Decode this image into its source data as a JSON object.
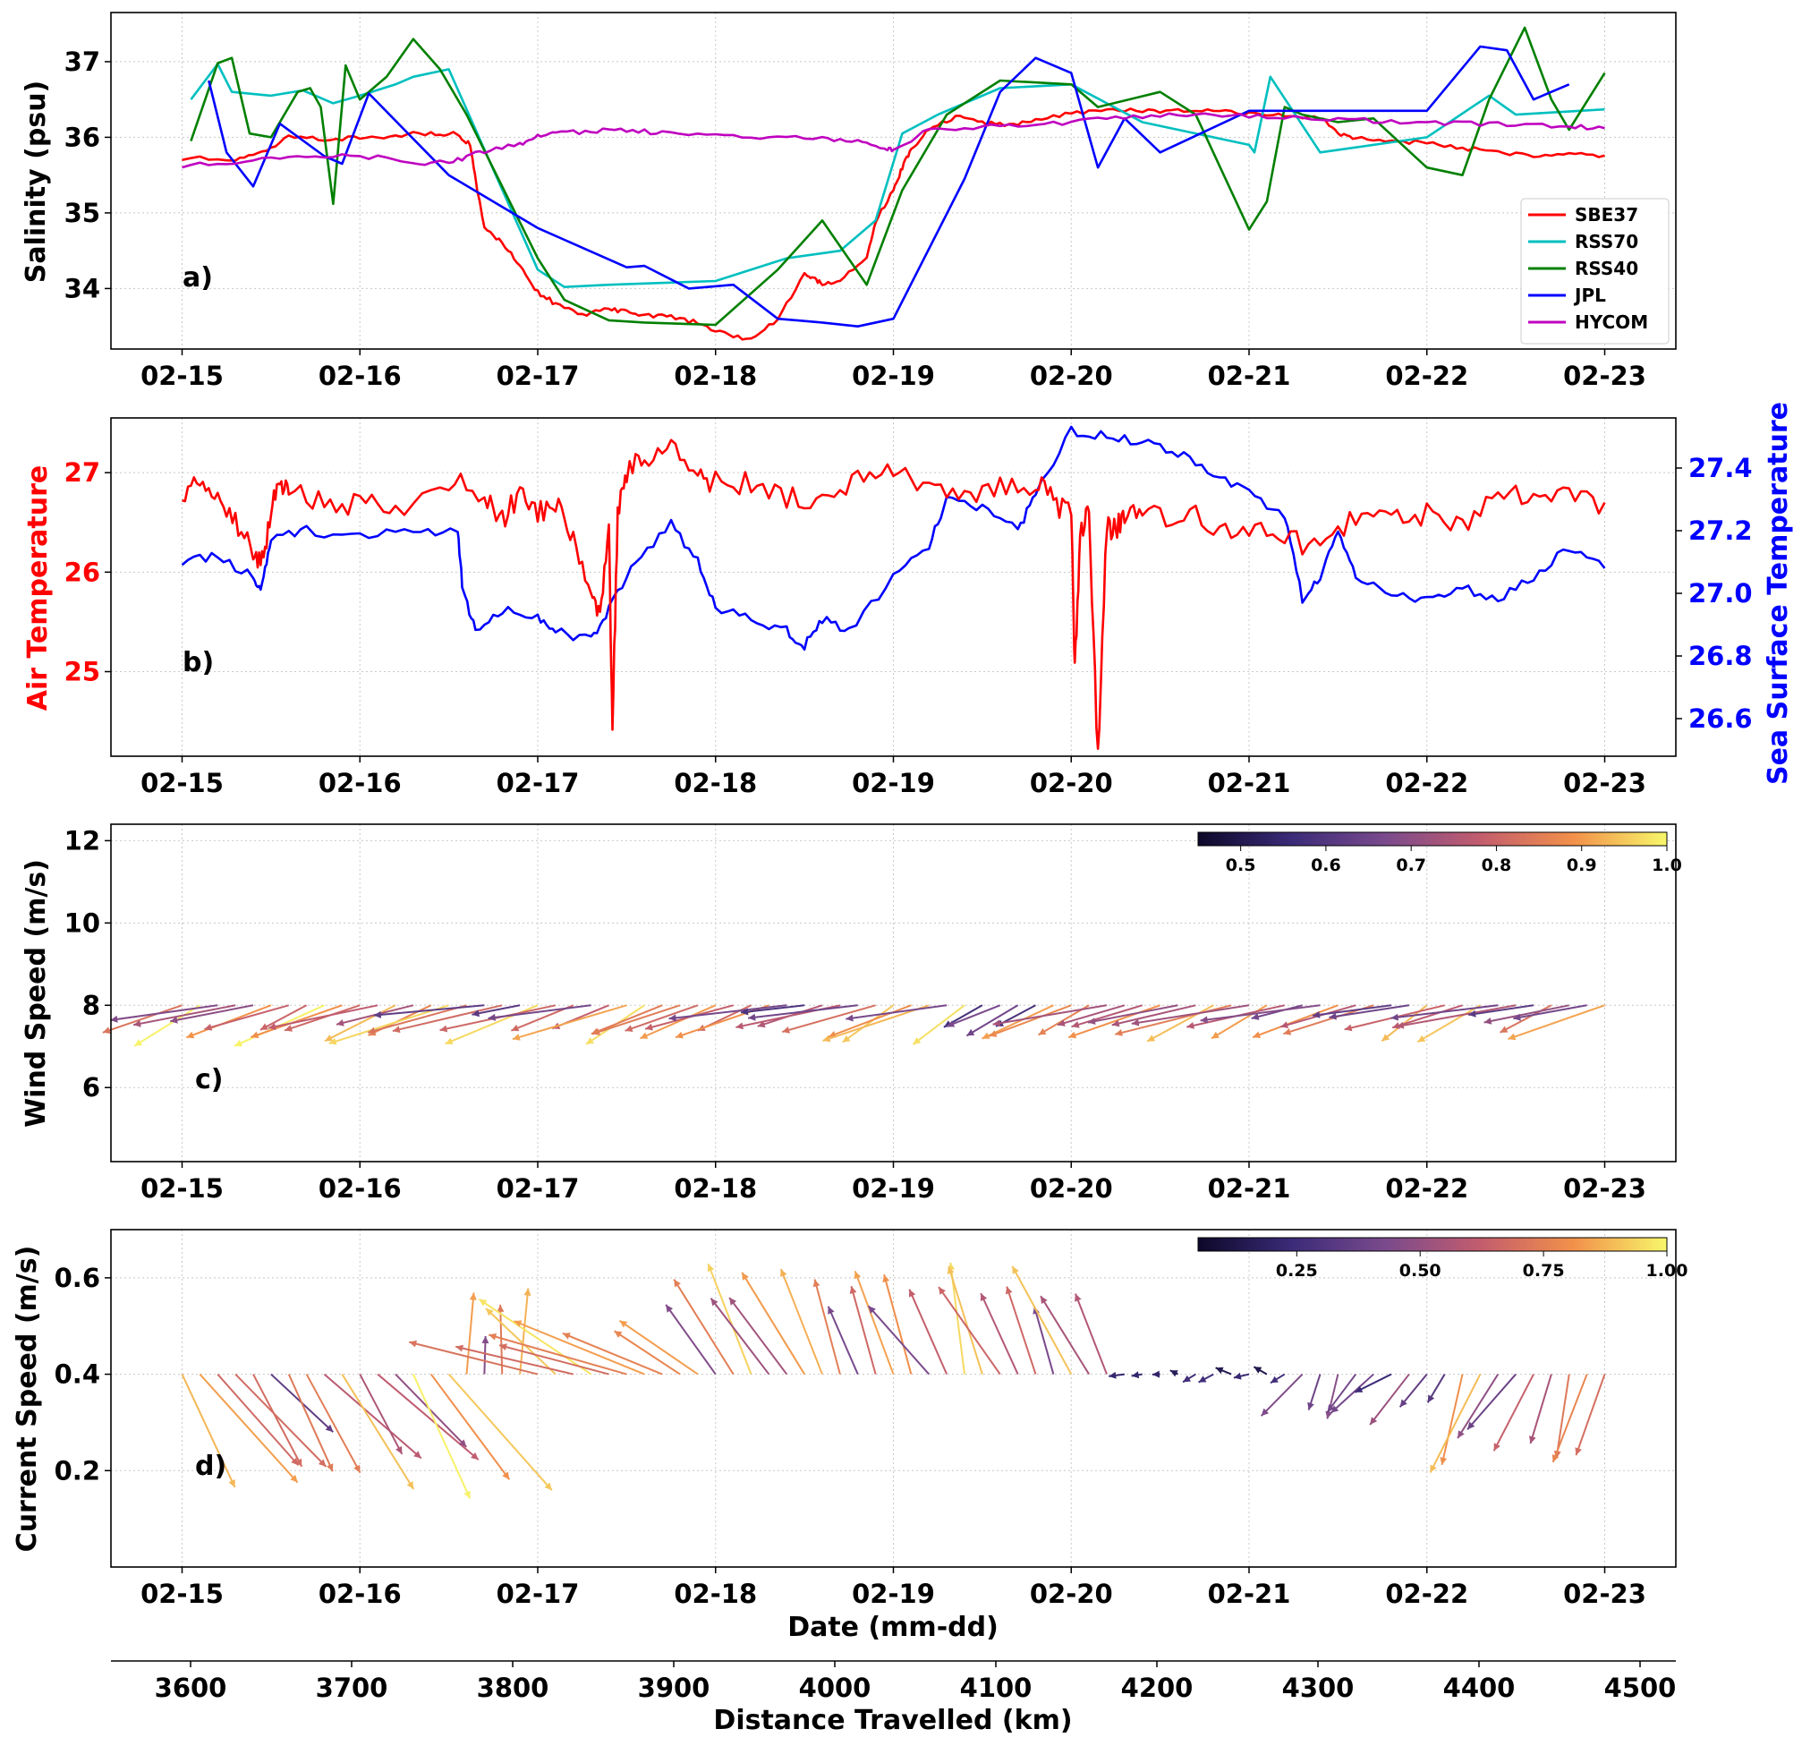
{
  "chart_data": [
    {
      "type": "line",
      "panel_label": "a)",
      "ylabel": "Salinity (psu)",
      "x_ticks": [
        "02-15",
        "02-16",
        "02-17",
        "02-18",
        "02-19",
        "02-20",
        "02-21",
        "02-22",
        "02-23"
      ],
      "xlim": [
        -0.4,
        8.4
      ],
      "ylim": [
        33.2,
        37.65
      ],
      "y_ticks": [
        34,
        35,
        36,
        37
      ],
      "grid": true,
      "legend_position": "lower-right",
      "series": [
        {
          "name": "SBE37",
          "color": "#ff0000",
          "x": [
            0,
            0.3,
            0.45,
            0.6,
            0.8,
            1,
            1.2,
            1.4,
            1.55,
            1.62,
            1.66,
            1.7,
            1.8,
            1.9,
            2,
            2.1,
            2.25,
            2.4,
            2.5,
            2.6,
            2.75,
            2.9,
            3.05,
            3.2,
            3.35,
            3.5,
            3.55,
            3.6,
            3.7,
            3.85,
            3.9,
            4.0,
            4.05,
            4.1,
            4.2,
            4.35,
            4.5,
            4.65,
            4.8,
            5.0,
            5.2,
            5.4,
            5.6,
            5.8,
            6.0,
            6.2,
            6.4,
            6.5,
            6.6,
            6.8,
            7.0,
            7.2,
            7.4,
            7.6,
            7.8,
            8.0
          ],
          "y": [
            35.72,
            35.72,
            35.8,
            36.0,
            35.98,
            35.99,
            36.02,
            36.06,
            36.04,
            35.9,
            35.3,
            34.8,
            34.6,
            34.3,
            33.95,
            33.8,
            33.65,
            33.72,
            33.7,
            33.65,
            33.62,
            33.55,
            33.4,
            33.33,
            33.6,
            34.2,
            34.15,
            34.05,
            34.1,
            34.4,
            34.9,
            35.3,
            35.6,
            35.85,
            36.1,
            36.28,
            36.2,
            36.15,
            36.25,
            36.32,
            36.35,
            36.35,
            36.35,
            36.34,
            36.32,
            36.28,
            36.25,
            36.05,
            35.98,
            35.96,
            35.92,
            35.86,
            35.8,
            35.76,
            35.78,
            35.76
          ]
        },
        {
          "name": "RSS70",
          "color": "#00bfbf",
          "x": [
            0.05,
            0.2,
            0.28,
            0.5,
            0.68,
            0.85,
            1.0,
            1.2,
            1.3,
            1.5,
            2.0,
            2.15,
            2.4,
            3.0,
            3.4,
            3.7,
            3.9,
            4.05,
            4.25,
            4.6,
            5.0,
            5.4,
            6.0,
            6.03,
            6.12,
            6.4,
            7.0,
            7.35,
            7.5,
            8.0
          ],
          "y": [
            36.5,
            36.97,
            36.6,
            36.55,
            36.62,
            36.45,
            36.55,
            36.7,
            36.8,
            36.9,
            34.25,
            34.02,
            34.05,
            34.1,
            34.4,
            34.5,
            34.9,
            36.05,
            36.3,
            36.65,
            36.7,
            36.2,
            35.9,
            35.8,
            36.8,
            35.8,
            36.0,
            36.55,
            36.3,
            36.37
          ]
        },
        {
          "name": "RSS40",
          "color": "#008000",
          "x": [
            0.05,
            0.2,
            0.28,
            0.38,
            0.5,
            0.65,
            0.72,
            0.78,
            0.85,
            0.92,
            1.0,
            1.15,
            1.3,
            1.45,
            1.6,
            2.0,
            2.15,
            2.4,
            2.6,
            3.0,
            3.35,
            3.6,
            3.85,
            4.05,
            4.3,
            4.6,
            5.0,
            5.15,
            5.5,
            5.7,
            6.0,
            6.1,
            6.2,
            6.3,
            6.5,
            6.7,
            7.0,
            7.2,
            7.35,
            7.55,
            7.7,
            7.8,
            8.0
          ],
          "y": [
            35.95,
            36.98,
            37.05,
            36.05,
            36.0,
            36.6,
            36.65,
            36.4,
            35.12,
            36.95,
            36.5,
            36.8,
            37.3,
            36.9,
            36.3,
            34.4,
            33.85,
            33.58,
            33.55,
            33.52,
            34.25,
            34.9,
            34.05,
            35.3,
            36.3,
            36.75,
            36.7,
            36.4,
            36.6,
            36.3,
            34.78,
            35.15,
            36.4,
            36.3,
            36.2,
            36.25,
            35.6,
            35.5,
            36.5,
            37.45,
            36.5,
            36.1,
            36.85
          ]
        },
        {
          "name": "JPL",
          "color": "#0000ff",
          "x": [
            0.15,
            0.25,
            0.4,
            0.55,
            0.8,
            0.9,
            1.05,
            1.5,
            2.0,
            2.5,
            2.6,
            2.85,
            3.1,
            3.35,
            3.6,
            3.8,
            4.0,
            4.4,
            4.6,
            4.8,
            5.0,
            5.15,
            5.3,
            5.5,
            6.0,
            7.0,
            7.3,
            7.45,
            7.6,
            7.7,
            7.8
          ],
          "y": [
            36.75,
            35.8,
            35.35,
            36.18,
            35.75,
            35.65,
            36.58,
            35.5,
            34.8,
            34.28,
            34.3,
            34.0,
            34.05,
            33.6,
            33.55,
            33.5,
            33.6,
            35.45,
            36.6,
            37.05,
            36.85,
            35.6,
            36.25,
            35.8,
            36.35,
            36.35,
            37.2,
            37.15,
            36.5,
            36.6,
            36.7
          ]
        },
        {
          "name": "HYCOM",
          "color": "#bf00bf",
          "x": [
            0,
            0.3,
            0.6,
            0.9,
            1.2,
            1.4,
            1.55,
            1.7,
            1.9,
            2.0,
            2.1,
            2.3,
            2.5,
            2.7,
            3.0,
            3.3,
            3.6,
            3.8,
            3.95,
            4.0,
            4.2,
            4.5,
            4.8,
            5.1,
            5.4,
            5.7,
            6.0,
            6.3,
            6.6,
            6.9,
            7.2,
            7.5,
            7.8,
            8.0
          ],
          "y": [
            35.62,
            35.68,
            35.74,
            35.76,
            35.72,
            35.65,
            35.7,
            35.82,
            35.9,
            36.02,
            36.05,
            36.08,
            36.1,
            36.05,
            36.02,
            36.0,
            35.98,
            35.95,
            35.85,
            35.83,
            36.1,
            36.14,
            36.16,
            36.22,
            36.28,
            36.3,
            36.28,
            36.25,
            36.23,
            36.2,
            36.18,
            36.17,
            36.14,
            36.12
          ]
        }
      ]
    },
    {
      "type": "line",
      "panel_label": "b)",
      "ylabel": "Air Temperature",
      "ylabel_right": "Sea Surface Temperature",
      "x_ticks": [
        "02-15",
        "02-16",
        "02-17",
        "02-18",
        "02-19",
        "02-20",
        "02-21",
        "02-22",
        "02-23"
      ],
      "xlim": [
        -0.4,
        8.4
      ],
      "ylim_left": [
        24.15,
        27.55
      ],
      "y_ticks_left": [
        25,
        26,
        27
      ],
      "ylim_right": [
        26.48,
        27.56
      ],
      "y_ticks_right": [
        "26.6",
        "26.8",
        "27.0",
        "27.2",
        "27.4"
      ],
      "grid": true,
      "series": [
        {
          "name": "Air Temperature",
          "axis": "left",
          "color": "#ff0000",
          "x": [
            0,
            0.1,
            0.2,
            0.3,
            0.4,
            0.45,
            0.5,
            0.55,
            0.6,
            0.8,
            1.0,
            1.2,
            1.5,
            1.7,
            1.8,
            1.9,
            2.0,
            2.1,
            2.2,
            2.3,
            2.35,
            2.4,
            2.42,
            2.45,
            2.5,
            2.6,
            2.75,
            2.9,
            3.0,
            3.2,
            3.4,
            3.6,
            3.8,
            4.0,
            4.2,
            4.4,
            4.6,
            4.8,
            4.9,
            5.0,
            5.02,
            5.05,
            5.1,
            5.15,
            5.2,
            5.25,
            5.3,
            5.4,
            5.6,
            5.8,
            6.0,
            6.2,
            6.4,
            6.6,
            6.8,
            7.0,
            7.2,
            7.4,
            7.6,
            7.8,
            8.0
          ],
          "y": [
            26.8,
            26.9,
            26.7,
            26.5,
            26.2,
            26.1,
            26.6,
            26.9,
            26.8,
            26.7,
            26.7,
            26.6,
            26.9,
            26.8,
            26.5,
            26.8,
            26.6,
            26.7,
            26.3,
            25.8,
            25.5,
            26.4,
            24.5,
            26.6,
            27.0,
            27.15,
            27.25,
            27.0,
            26.9,
            26.9,
            26.75,
            26.7,
            26.9,
            27.0,
            26.9,
            26.8,
            26.85,
            26.9,
            26.7,
            26.6,
            25.0,
            26.4,
            26.6,
            24.1,
            26.5,
            26.4,
            26.6,
            26.55,
            26.6,
            26.5,
            26.4,
            26.4,
            26.2,
            26.6,
            26.5,
            26.6,
            26.5,
            26.7,
            26.85,
            26.75,
            26.7
          ]
        },
        {
          "name": "Sea Surface Temperature",
          "axis": "right",
          "color": "#0000ff",
          "x": [
            0,
            0.2,
            0.4,
            0.45,
            0.5,
            0.7,
            1.0,
            1.3,
            1.55,
            1.58,
            1.65,
            1.8,
            2.0,
            2.1,
            2.3,
            2.4,
            2.55,
            2.75,
            2.9,
            3.0,
            3.2,
            3.4,
            3.5,
            3.6,
            3.75,
            4.0,
            4.2,
            4.3,
            4.5,
            4.7,
            4.8,
            5.0,
            5.2,
            5.4,
            5.6,
            5.8,
            6.0,
            6.2,
            6.3,
            6.4,
            6.5,
            6.6,
            6.8,
            7.0,
            7.2,
            7.4,
            7.6,
            7.8,
            8.0
          ],
          "y": [
            27.1,
            27.12,
            27.05,
            27.02,
            27.18,
            27.2,
            27.18,
            27.2,
            27.2,
            27.0,
            26.88,
            26.95,
            26.92,
            26.88,
            26.85,
            26.95,
            27.1,
            27.22,
            27.1,
            26.95,
            26.92,
            26.88,
            26.83,
            26.92,
            26.88,
            27.05,
            27.15,
            27.3,
            27.27,
            27.2,
            27.32,
            27.52,
            27.5,
            27.48,
            27.45,
            27.38,
            27.32,
            27.25,
            26.98,
            27.05,
            27.2,
            27.05,
            27.0,
            26.98,
            27.02,
            26.98,
            27.05,
            27.15,
            27.08
          ]
        }
      ]
    },
    {
      "type": "quiver",
      "panel_label": "c)",
      "ylabel": "Wind Speed (m/s)",
      "x_ticks": [
        "02-15",
        "02-16",
        "02-17",
        "02-18",
        "02-19",
        "02-20",
        "02-21",
        "02-22",
        "02-23"
      ],
      "xlim": [
        -0.4,
        8.4
      ],
      "ylim": [
        4.2,
        12.4
      ],
      "y_ticks": [
        6,
        8,
        10,
        12
      ],
      "baseline": 8,
      "grid": true,
      "colorbar": {
        "ticks": [
          "0.5",
          "0.6",
          "0.7",
          "0.8",
          "0.9",
          "1.0"
        ],
        "min": 0.45,
        "max": 1.0,
        "position": "top-right"
      }
    },
    {
      "type": "quiver",
      "panel_label": "d)",
      "ylabel": "Current Speed (m/s)",
      "xlabel": "Date (mm-dd)",
      "x_ticks": [
        "02-15",
        "02-16",
        "02-17",
        "02-18",
        "02-19",
        "02-20",
        "02-21",
        "02-22",
        "02-23"
      ],
      "xlim": [
        -0.4,
        8.4
      ],
      "ylim": [
        0.0,
        0.7
      ],
      "y_ticks": [
        "0.2",
        "0.4",
        "0.6"
      ],
      "baseline": 0.4,
      "grid": true,
      "colorbar": {
        "ticks": [
          "0.25",
          "0.50",
          "0.75",
          "1.00"
        ],
        "min": 0.05,
        "max": 1.0,
        "position": "top-right"
      },
      "secondary_x_axis": {
        "label": "Distance Travelled (km)",
        "ticks": [
          "3600",
          "3700",
          "3800",
          "3900",
          "4000",
          "4100",
          "4200",
          "4300",
          "4400",
          "4500"
        ]
      }
    }
  ]
}
